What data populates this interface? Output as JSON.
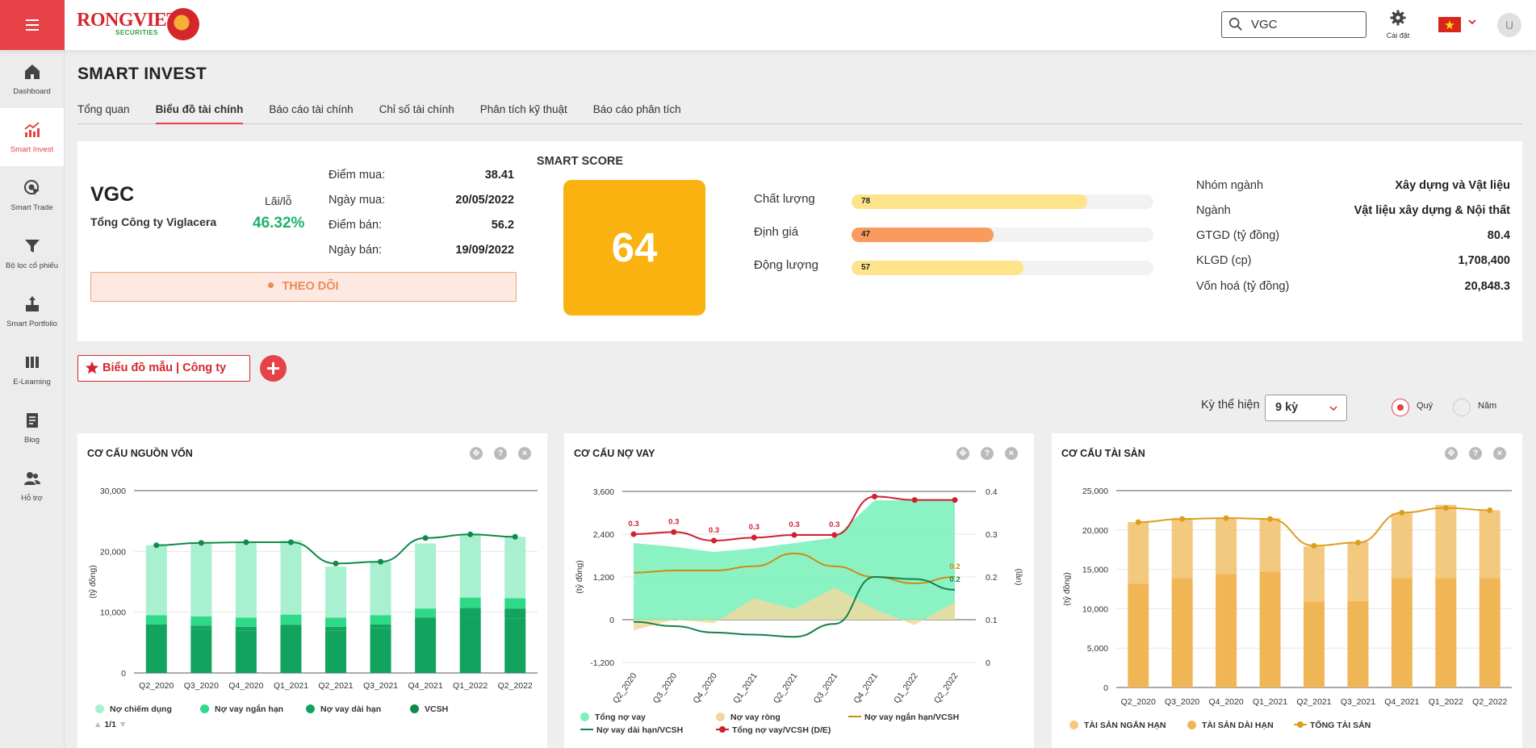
{
  "app": {
    "brand": "RONGVIET",
    "brand_sub": "SECURITIES",
    "settings_label": "Cài đặt",
    "avatar_initial": "U",
    "search": {
      "value": "VGC"
    }
  },
  "sidebar": {
    "items": [
      {
        "label": "Dashboard",
        "icon": "home-icon"
      },
      {
        "label": "Smart Invest",
        "icon": "chart-up-icon"
      },
      {
        "label": "Smart Trade",
        "icon": "cursor-target-icon"
      },
      {
        "label": "Bộ lọc cổ phiếu",
        "icon": "filter-icon"
      },
      {
        "label": "Smart Portfolio",
        "icon": "portfolio-icon"
      },
      {
        "label": "E-Learning",
        "icon": "books-icon"
      },
      {
        "label": "Blog",
        "icon": "blog-icon"
      },
      {
        "label": "Hỗ trợ",
        "icon": "support-icon"
      }
    ],
    "active_index": 1
  },
  "page": {
    "title": "SMART INVEST",
    "tabs": [
      "Tổng quan",
      "Biểu đồ tài chính",
      "Báo cáo tài chính",
      "Chỉ số tài chính",
      "Phân tích kỹ thuật",
      "Báo cáo phân tích"
    ],
    "active_tab": 1
  },
  "stock": {
    "ticker": "VGC",
    "company": "Tổng Công ty Viglacera",
    "pl_label": "Lãi/lỗ",
    "pl_value": "46.32%",
    "trade": [
      {
        "k": "Điểm mua:",
        "v": "38.41"
      },
      {
        "k": "Ngày mua:",
        "v": "20/05/2022"
      },
      {
        "k": "Điểm bán:",
        "v": "56.2"
      },
      {
        "k": "Ngày bán:",
        "v": "19/09/2022"
      }
    ],
    "follow_label": "THEO DÕI",
    "smart_score_label": "SMART SCORE",
    "smart_score": "64",
    "metrics": [
      {
        "label": "Chất lượng",
        "value": 78,
        "text": "78",
        "color": "#fde48a"
      },
      {
        "label": "Định giá",
        "value": 47,
        "text": "47",
        "color": "#f99a5f"
      },
      {
        "label": "Động lượng",
        "value": 57,
        "text": "57",
        "color": "#fde48a"
      }
    ],
    "info": [
      {
        "k": "Nhóm ngành",
        "v": "Xây dựng và Vật liệu"
      },
      {
        "k": "Ngành",
        "v": "Vật liệu xây dựng & Nội thất"
      },
      {
        "k": "GTGD (tỷ đồng)",
        "v": "80.4"
      },
      {
        "k": "KLGD (cp)",
        "v": "1,708,400"
      },
      {
        "k": "Vốn hoá (tỷ đồng)",
        "v": "20,848.3"
      }
    ]
  },
  "controls": {
    "template_label": "Biểu đồ mẫu | Công ty",
    "period_label": "Kỳ thể hiện",
    "period_value": "9 kỳ",
    "radio_quarter": "Quý",
    "radio_year": "Năm",
    "pager": "1/1"
  },
  "colors": {
    "accent": "#e74248",
    "green": "#1eb16c",
    "score": "#f9b20f"
  },
  "chart_data": [
    {
      "type": "bar",
      "title": "CƠ CẤU NGUỒN VỐN",
      "ylabel": "(tỷ đồng)",
      "ylim": [
        0,
        30000
      ],
      "yticks": [
        "0",
        "10,000",
        "20,000",
        "30,000"
      ],
      "categories": [
        "Q2_2020",
        "Q3_2020",
        "Q4_2020",
        "Q1_2021",
        "Q2_2021",
        "Q3_2021",
        "Q4_2021",
        "Q1_2022",
        "Q2_2022"
      ],
      "series": [
        {
          "name": "Nợ chiếm dụng",
          "kind": "stack",
          "color": "#a8f0cf",
          "values": [
            11500,
            12200,
            12400,
            12200,
            8400,
            8800,
            10700,
            10500,
            10100
          ]
        },
        {
          "name": "Nợ vay ngắn hạn",
          "kind": "stack",
          "color": "#2ed987",
          "values": [
            1500,
            1500,
            1500,
            1700,
            1500,
            1500,
            1500,
            1700,
            1700
          ]
        },
        {
          "name": "Nợ vay dài hạn",
          "kind": "stack",
          "color": "#12a35f",
          "values": [
            700,
            600,
            600,
            600,
            600,
            600,
            1000,
            1600,
            1600
          ]
        },
        {
          "name": "VCSH",
          "kind": "line",
          "color": "#0f8a4a",
          "values": [
            21000,
            21400,
            21500,
            21500,
            18000,
            18300,
            22200,
            22800,
            22400
          ]
        }
      ],
      "base_stack_color": "#12a35f",
      "base_values": [
        7300,
        7200,
        7000,
        7300,
        7000,
        7400,
        8100,
        9100,
        9000
      ]
    },
    {
      "type": "area",
      "title": "CƠ CẤU NỢ VAY",
      "ylabel": "(tỷ đồng)",
      "y2label": "(lần)",
      "ylim": [
        -1200,
        3600
      ],
      "yticks": [
        "-1,200",
        "0",
        "1,200",
        "2,400",
        "3,600"
      ],
      "y2lim": [
        0,
        0.4
      ],
      "y2ticks": [
        "0",
        "0.1",
        "0.2",
        "0.3",
        "0.4"
      ],
      "categories": [
        "Q2_2020",
        "Q3_2020",
        "Q4_2020",
        "Q1_2021",
        "Q2_2021",
        "Q3_2021",
        "Q4_2021",
        "Q1_2022",
        "Q2_2022"
      ],
      "series": [
        {
          "name": "Tổng nợ vay",
          "kind": "area",
          "color": "#7ef2bd",
          "values": [
            2150,
            2050,
            1900,
            2000,
            2150,
            2300,
            3350,
            3350,
            3350
          ]
        },
        {
          "name": "Nợ vay ròng",
          "kind": "area",
          "color": "#efd9a0",
          "values": [
            -300,
            0,
            -100,
            600,
            300,
            900,
            300,
            -150,
            500
          ]
        },
        {
          "name": "Nợ vay ngắn hạn/VCSH",
          "kind": "line",
          "axis": "y2",
          "color": "#d08a16",
          "values": [
            0.21,
            0.215,
            0.215,
            0.225,
            0.255,
            0.225,
            0.2,
            0.185,
            0.2
          ]
        },
        {
          "name": "Nợ vay dài hạn/VCSH",
          "kind": "line",
          "axis": "y2",
          "color": "#17804a",
          "values": [
            0.095,
            0.085,
            0.07,
            0.065,
            0.06,
            0.09,
            0.2,
            0.195,
            0.17
          ]
        },
        {
          "name": "Tổng nợ vay/VCSH (D/E)",
          "kind": "line",
          "axis": "y2",
          "color": "#d02030",
          "marker": true,
          "values": [
            0.3,
            0.305,
            0.285,
            0.292,
            0.298,
            0.298,
            0.388,
            0.38,
            0.38
          ]
        }
      ],
      "data_labels": [
        {
          "series": "Tổng nợ vay/VCSH (D/E)",
          "index": 0,
          "text": "0.3"
        },
        {
          "series": "Tổng nợ vay/VCSH (D/E)",
          "index": 1,
          "text": "0.3"
        },
        {
          "series": "Tổng nợ vay/VCSH (D/E)",
          "index": 2,
          "text": "0.3"
        },
        {
          "series": "Tổng nợ vay/VCSH (D/E)",
          "index": 3,
          "text": "0.3"
        },
        {
          "series": "Tổng nợ vay/VCSH (D/E)",
          "index": 4,
          "text": "0.3"
        },
        {
          "series": "Tổng nợ vay/VCSH (D/E)",
          "index": 5,
          "text": "0.3"
        },
        {
          "series": "Nợ vay ngắn hạn/VCSH",
          "index": 8,
          "text": "0.2"
        },
        {
          "series": "Nợ vay dài hạn/VCSH",
          "index": 8,
          "text": "0.2"
        }
      ]
    },
    {
      "type": "bar",
      "title": "CƠ CẤU TÀI SẢN",
      "ylabel": "(tỷ đồng)",
      "ylim": [
        0,
        25000
      ],
      "yticks": [
        "0",
        "5,000",
        "10,000",
        "15,000",
        "20,000",
        "25,000"
      ],
      "categories": [
        "Q2_2020",
        "Q3_2020",
        "Q4_2020",
        "Q1_2021",
        "Q2_2021",
        "Q3_2021",
        "Q4_2021",
        "Q1_2022",
        "Q2_2022"
      ],
      "series": [
        {
          "name": "TÀI SẢN NGẮN HẠN",
          "kind": "stack",
          "color": "#f3c97f",
          "values": [
            7800,
            7600,
            7100,
            6800,
            7000,
            7500,
            8200,
            9300,
            8600
          ]
        },
        {
          "name": "TÀI SẢN DÀI HẠN",
          "kind": "stack",
          "color": "#f0b655",
          "values": [
            13200,
            13900,
            14400,
            14700,
            10900,
            11000,
            13900,
            13900,
            13900
          ]
        },
        {
          "name": "TỔNG TÀI SẢN",
          "kind": "line",
          "color": "#dd9e1e",
          "values": [
            21000,
            21400,
            21500,
            21400,
            18000,
            18400,
            22200,
            22800,
            22500
          ]
        }
      ]
    }
  ]
}
